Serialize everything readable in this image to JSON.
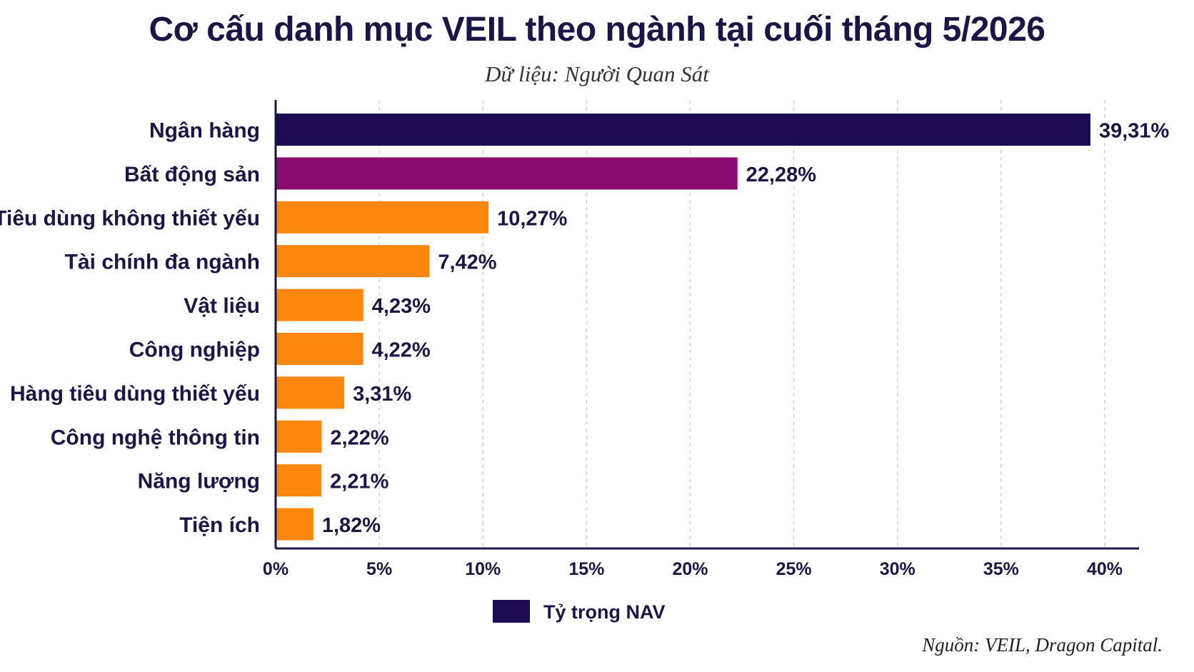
{
  "chart_data": {
    "type": "bar",
    "orientation": "horizontal",
    "title": "Cơ cấu danh mục VEIL theo ngành tại cuối tháng 5/2026",
    "subtitle": "Dữ liệu: Người Quan Sát",
    "source": "Nguồn: VEIL, Dragon Capital.",
    "categories": [
      "Ngân hàng",
      "Bất động sản",
      "Tiêu dùng không thiết yếu",
      "Tài chính đa ngành",
      "Vật liệu",
      "Công nghiệp",
      "Hàng tiêu dùng thiết yếu",
      "Công nghệ thông tin",
      "Năng lượng",
      "Tiện ích"
    ],
    "values": [
      39.31,
      22.28,
      10.27,
      7.42,
      4.23,
      4.22,
      3.31,
      2.22,
      2.21,
      1.82
    ],
    "value_labels": [
      "39,31%",
      "22,28%",
      "10,27%",
      "7,42%",
      "4,23%",
      "4,22%",
      "3,31%",
      "2,22%",
      "2,21%",
      "1,82%"
    ],
    "bar_colors": [
      "#1d0b52",
      "#8a0a72",
      "#fe870f",
      "#fe870f",
      "#fe870f",
      "#fe870f",
      "#fe870f",
      "#fe870f",
      "#fe870f",
      "#fe870f"
    ],
    "xlim": [
      0,
      40
    ],
    "x_ticks": [
      0,
      5,
      10,
      15,
      20,
      25,
      30,
      35,
      40
    ],
    "x_tick_labels": [
      "0%",
      "5%",
      "10%",
      "15%",
      "20%",
      "25%",
      "30%",
      "35%",
      "40%"
    ],
    "grid": "vertical dashed",
    "legend": {
      "label": "Tỷ trọng NAV",
      "color": "#1d0b52",
      "position": "bottom-center"
    }
  }
}
